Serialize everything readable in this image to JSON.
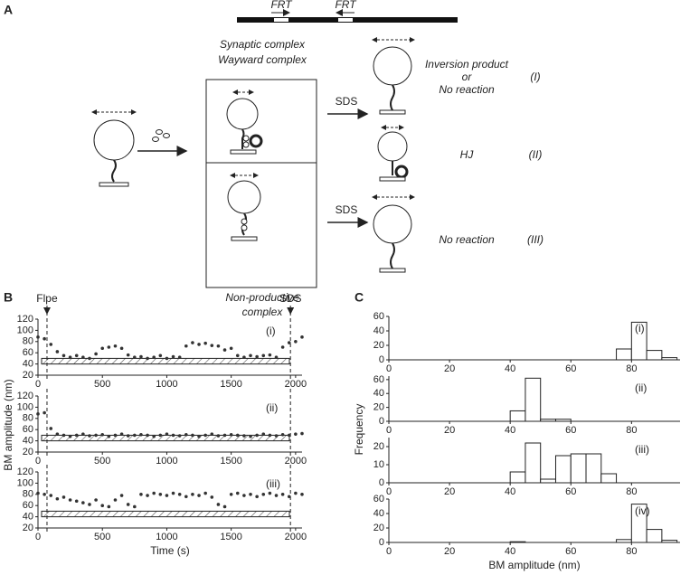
{
  "panel_labels": [
    "A",
    "B",
    "C"
  ],
  "diagram": {
    "frt": [
      "FRT",
      "FRT"
    ],
    "top_complex": [
      "Synaptic complex",
      "Wayward complex"
    ],
    "bottom_complex": [
      "Non-productive",
      "complex"
    ],
    "sds": [
      "SDS",
      "SDS"
    ],
    "outcomes": [
      {
        "lines": [
          "Inversion product",
          "or",
          "No reaction"
        ],
        "id": "(I)"
      },
      {
        "lines": [
          "HJ"
        ],
        "id": "(II)"
      },
      {
        "lines": [
          "No reaction"
        ],
        "id": "(III)"
      }
    ]
  },
  "chart_data": [
    {
      "type": "scatter",
      "label": "(i)",
      "color": "#333333",
      "xlim": [
        0,
        2050
      ],
      "ylim": [
        20,
        120
      ],
      "xticks": [
        0,
        500,
        1000,
        1500,
        2000
      ],
      "yticks": [
        20,
        40,
        60,
        80,
        100,
        120
      ],
      "band": [
        40,
        50
      ],
      "markers": [
        {
          "x": 70,
          "label": "Flpe"
        },
        {
          "x": 1960,
          "label": "SDS"
        }
      ],
      "x": [
        0,
        50,
        100,
        150,
        200,
        250,
        300,
        350,
        400,
        450,
        500,
        550,
        600,
        650,
        700,
        750,
        800,
        850,
        900,
        950,
        1000,
        1050,
        1100,
        1150,
        1200,
        1250,
        1300,
        1350,
        1400,
        1450,
        1500,
        1550,
        1600,
        1650,
        1700,
        1750,
        1800,
        1850,
        1900,
        1950,
        2000,
        2050
      ],
      "values": [
        88,
        85,
        75,
        62,
        55,
        52,
        55,
        52,
        50,
        58,
        68,
        70,
        72,
        68,
        56,
        52,
        53,
        50,
        52,
        55,
        50,
        53,
        52,
        72,
        78,
        75,
        77,
        73,
        72,
        65,
        68,
        55,
        52,
        55,
        53,
        55,
        56,
        52,
        70,
        78,
        80,
        88
      ]
    },
    {
      "type": "scatter",
      "label": "(ii)",
      "ylabel": "BM amplitude (nm)",
      "color": "#333333",
      "xlim": [
        0,
        2050
      ],
      "ylim": [
        20,
        120
      ],
      "xticks": [
        0,
        500,
        1000,
        1500,
        2000
      ],
      "yticks": [
        20,
        40,
        60,
        80,
        100,
        120
      ],
      "band": [
        40,
        50
      ],
      "markers": [
        {
          "x": 70
        },
        {
          "x": 1960
        }
      ],
      "x": [
        0,
        50,
        100,
        150,
        200,
        250,
        300,
        350,
        400,
        450,
        500,
        550,
        600,
        650,
        700,
        750,
        800,
        850,
        900,
        950,
        1000,
        1050,
        1100,
        1150,
        1200,
        1250,
        1300,
        1350,
        1400,
        1450,
        1500,
        1550,
        1600,
        1650,
        1700,
        1750,
        1800,
        1850,
        1900,
        1950,
        2000,
        2050
      ],
      "values": [
        88,
        90,
        62,
        52,
        50,
        48,
        50,
        52,
        49,
        50,
        51,
        48,
        50,
        52,
        49,
        50,
        51,
        50,
        48,
        50,
        52,
        50,
        49,
        51,
        50,
        48,
        50,
        52,
        49,
        50,
        51,
        50,
        49,
        48,
        50,
        52,
        50,
        49,
        51,
        50,
        52,
        53
      ]
    },
    {
      "type": "scatter",
      "label": "(iii)",
      "xlabel": "Time (s)",
      "color": "#333333",
      "xlim": [
        0,
        2050
      ],
      "ylim": [
        20,
        120
      ],
      "xticks": [
        0,
        500,
        1000,
        1500,
        2000
      ],
      "yticks": [
        20,
        40,
        60,
        80,
        100,
        120
      ],
      "band": [
        40,
        50
      ],
      "markers": [
        {
          "x": 70
        },
        {
          "x": 1960
        }
      ],
      "x": [
        0,
        50,
        100,
        150,
        200,
        250,
        300,
        350,
        400,
        450,
        500,
        550,
        600,
        650,
        700,
        750,
        800,
        850,
        900,
        950,
        1000,
        1050,
        1100,
        1150,
        1200,
        1250,
        1300,
        1350,
        1400,
        1450,
        1500,
        1550,
        1600,
        1650,
        1700,
        1750,
        1800,
        1850,
        1900,
        1950,
        2000,
        2050
      ],
      "values": [
        82,
        80,
        78,
        72,
        75,
        70,
        68,
        65,
        62,
        70,
        60,
        58,
        70,
        78,
        62,
        58,
        80,
        78,
        82,
        80,
        78,
        82,
        80,
        76,
        80,
        78,
        82,
        75,
        62,
        58,
        80,
        82,
        78,
        80,
        76,
        80,
        82,
        78,
        80,
        76,
        82,
        80
      ]
    },
    {
      "type": "histogram",
      "label": "(i)",
      "color": "#ffffff",
      "xlim": [
        0,
        96
      ],
      "ylim": [
        0,
        60
      ],
      "xticks": [
        0,
        20,
        40,
        60,
        80
      ],
      "yticks": [
        0,
        20,
        40,
        60
      ],
      "bins": [
        75,
        80,
        85,
        90,
        95
      ],
      "values": [
        15,
        52,
        13,
        3
      ]
    },
    {
      "type": "histogram",
      "label": "(ii)",
      "ylabel": "Frequency",
      "color": "#ffffff",
      "xlim": [
        0,
        96
      ],
      "ylim": [
        0,
        65
      ],
      "xticks": [
        0,
        20,
        40,
        60,
        80
      ],
      "yticks": [
        0,
        20,
        40,
        60
      ],
      "bins": [
        40,
        45,
        50,
        55,
        60
      ],
      "values": [
        15,
        62,
        3,
        3
      ]
    },
    {
      "type": "histogram",
      "label": "(iii)",
      "color": "#ffffff",
      "xlim": [
        0,
        96
      ],
      "ylim": [
        0,
        25
      ],
      "xticks": [
        0,
        20,
        40,
        60,
        80
      ],
      "yticks": [
        0,
        10,
        20
      ],
      "bins": [
        40,
        45,
        50,
        55,
        60,
        65,
        70,
        75
      ],
      "values": [
        6,
        22,
        2,
        15,
        16,
        16,
        5
      ]
    },
    {
      "type": "histogram",
      "label": "(iv)",
      "xlabel": "BM amplitude (nm)",
      "color": "#ffffff",
      "xlim": [
        0,
        96
      ],
      "ylim": [
        0,
        60
      ],
      "xticks": [
        0,
        20,
        40,
        60,
        80
      ],
      "yticks": [
        0,
        20,
        40,
        60
      ],
      "bins": [
        40,
        45,
        50,
        55,
        60,
        65,
        70,
        75,
        80,
        85,
        90,
        95
      ],
      "values": [
        1,
        0,
        0,
        0,
        0,
        0,
        0,
        4,
        53,
        18,
        3
      ]
    }
  ]
}
